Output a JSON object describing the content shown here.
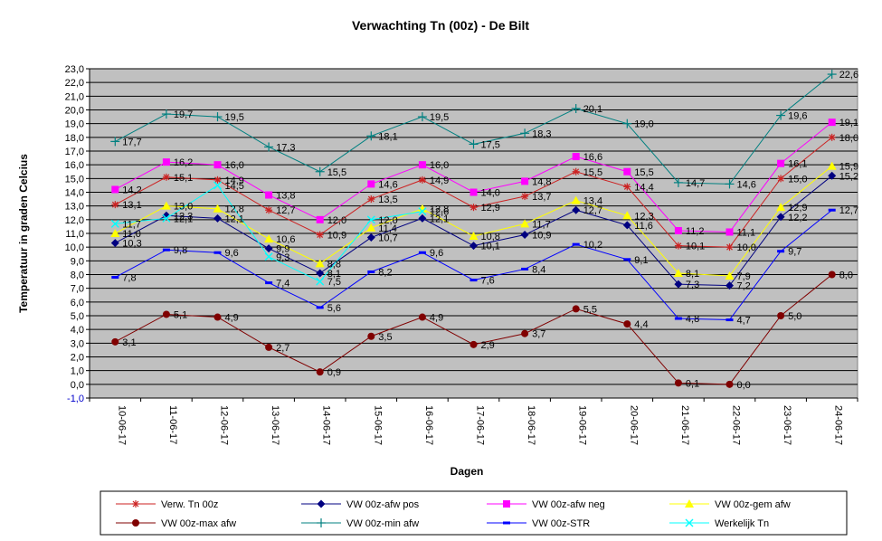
{
  "chart_data": {
    "type": "line",
    "title": "Verwachting Tn (00z) - De Bilt",
    "xlabel": "Dagen",
    "ylabel": "Temperatuur in graden Celcius",
    "ylim": [
      -1,
      23
    ],
    "ytick_labels": [
      "-1,0",
      "0,0",
      "1,0",
      "2,0",
      "3,0",
      "4,0",
      "5,0",
      "6,0",
      "7,0",
      "8,0",
      "9,0",
      "10,0",
      "11,0",
      "12,0",
      "13,0",
      "14,0",
      "15,0",
      "16,0",
      "17,0",
      "18,0",
      "19,0",
      "20,0",
      "21,0",
      "22,0",
      "23,0"
    ],
    "categories": [
      "10-06-17",
      "11-06-17",
      "12-06-17",
      "13-06-17",
      "14-06-17",
      "15-06-17",
      "16-06-17",
      "17-06-17",
      "18-06-17",
      "19-06-17",
      "20-06-17",
      "21-06-17",
      "22-06-17",
      "23-06-17",
      "24-06-17"
    ],
    "series": [
      {
        "name": "Verw. Tn 00z",
        "color": "#cc2222",
        "marker": "star",
        "values": [
          13.1,
          15.1,
          14.9,
          12.7,
          10.9,
          13.5,
          14.9,
          12.9,
          13.7,
          15.5,
          14.4,
          10.1,
          10.0,
          15.0,
          18.0
        ],
        "labels": [
          "13,1",
          "15,1",
          "14,9",
          "12,7",
          "10,9",
          "13,5",
          "14,9",
          "12,9",
          "13,7",
          "15,5",
          "14,4",
          "10,1",
          "10,0",
          "15,0",
          "18,0"
        ]
      },
      {
        "name": "VW 00z-afw pos",
        "color": "#000080",
        "marker": "diamond",
        "values": [
          10.3,
          12.3,
          12.1,
          9.9,
          8.1,
          10.7,
          12.1,
          10.1,
          10.9,
          12.7,
          11.6,
          7.3,
          7.2,
          12.2,
          15.2
        ],
        "labels": [
          "10,3",
          "12,3",
          "12,1",
          "9,9",
          "8,1",
          "10,7",
          "12,1",
          "10,1",
          "10,9",
          "12,7",
          "11,6",
          "7,3",
          "7,2",
          "12,2",
          "15,2"
        ]
      },
      {
        "name": "VW 00z-afw neg",
        "color": "#ff00ff",
        "marker": "square",
        "values": [
          14.2,
          16.2,
          16.0,
          13.8,
          12.0,
          14.6,
          16.0,
          14.0,
          14.8,
          16.6,
          15.5,
          11.2,
          11.1,
          16.1,
          19.1
        ],
        "labels": [
          "14,2",
          "16,2",
          "16,0",
          "13,8",
          "12,0",
          "14,6",
          "16,0",
          "14,0",
          "14,8",
          "16,6",
          "15,5",
          "11,2",
          "11,1",
          "16,1",
          "19,1"
        ]
      },
      {
        "name": "VW 00z-gem afw",
        "color": "#ffff00",
        "marker": "triangle",
        "values": [
          11.0,
          13.0,
          12.8,
          10.6,
          8.8,
          11.4,
          12.8,
          10.8,
          11.7,
          13.4,
          12.3,
          8.1,
          7.9,
          12.9,
          15.9
        ],
        "labels": [
          "11,0",
          "13,0",
          "12,8",
          "10,6",
          "8,8",
          "11,4",
          "12,8",
          "10,8",
          "11,7",
          "13,4",
          "12,3",
          "8,1",
          "7,9",
          "12,9",
          "15,9"
        ]
      },
      {
        "name": "VW 00z-max afw",
        "color": "#800000",
        "marker": "circle",
        "values": [
          3.1,
          5.1,
          4.9,
          2.7,
          0.9,
          3.5,
          4.9,
          2.9,
          3.7,
          5.5,
          4.4,
          0.1,
          0.0,
          5.0,
          8.0
        ],
        "labels": [
          "3,1",
          "5,1",
          "4,9",
          "2,7",
          "0,9",
          "3,5",
          "4,9",
          "2,9",
          "3,7",
          "5,5",
          "4,4",
          "0,1",
          "0,0",
          "5,0",
          "8,0"
        ]
      },
      {
        "name": "VW 00z-min afw",
        "color": "#008080",
        "marker": "plus",
        "values": [
          17.7,
          19.7,
          19.5,
          17.3,
          15.5,
          18.1,
          19.5,
          17.5,
          18.3,
          20.1,
          19.0,
          14.7,
          14.6,
          19.6,
          22.6
        ],
        "labels": [
          "17,7",
          "19,7",
          "19,5",
          "17,3",
          "15,5",
          "18,1",
          "19,5",
          "17,5",
          "18,3",
          "20,1",
          "19,0",
          "14,7",
          "14,6",
          "19,6",
          "22,6"
        ]
      },
      {
        "name": "VW 00z-STR",
        "color": "#0000ff",
        "marker": "dash",
        "values": [
          7.8,
          9.8,
          9.6,
          7.4,
          5.6,
          8.2,
          9.6,
          7.6,
          8.4,
          10.2,
          9.1,
          4.8,
          4.7,
          9.7,
          12.7
        ],
        "labels": [
          "7,8",
          "9,8",
          "9,6",
          "7,4",
          "5,6",
          "8,2",
          "9,6",
          "7,6",
          "8,4",
          "10,2",
          "9,1",
          "4,8",
          "4,7",
          "9,7",
          "12,7"
        ]
      },
      {
        "name": "Werkelijk Tn",
        "color": "#00ffff",
        "marker": "x",
        "values": [
          11.7,
          12.1,
          14.5,
          9.3,
          7.5,
          12.0,
          12.6,
          null,
          null,
          null,
          null,
          null,
          null,
          null,
          null
        ],
        "labels": [
          "11,7",
          "12,1",
          "14,5",
          "9,3",
          "7,5",
          "12,0",
          "12,6",
          null,
          null,
          null,
          null,
          null,
          null,
          null,
          null
        ]
      }
    ],
    "grid": true,
    "plot_background": "#c0c0c0",
    "legend_position": "bottom"
  }
}
